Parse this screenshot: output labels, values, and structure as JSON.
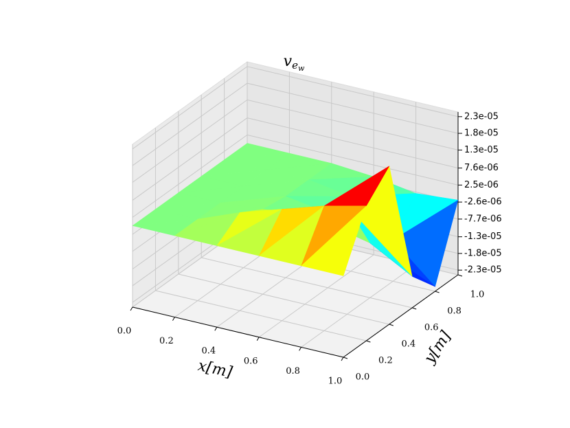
{
  "chart_data": {
    "type": "surface3d",
    "title": "v",
    "title_subscript": "e",
    "title_subsubscript": "w",
    "xlabel": "x[m]",
    "ylabel": "y[m]",
    "colormap": "jet",
    "grid": true,
    "x": [
      0,
      0.2,
      0.4,
      0.6,
      0.8,
      1
    ],
    "y": [
      0,
      0.2,
      0.4,
      0.6,
      0.8,
      1
    ],
    "z": [
      [
        0,
        0,
        0,
        0,
        0,
        0
      ],
      [
        0,
        0,
        5e-06,
        9e-06,
        1.3e-05,
        1.6e-05
      ],
      [
        0,
        0,
        1e-06,
        3e-06,
        8e-06,
        2.3e-05
      ],
      [
        0,
        0,
        0,
        -2e-06,
        -8e-06,
        -1.5e-05
      ],
      [
        0,
        0,
        0,
        -2e-06,
        -1.2e-05,
        -2.3e-05
      ],
      [
        0,
        0,
        0,
        -1e-06,
        -3e-06,
        -2e-06
      ]
    ],
    "xlim": [
      0,
      1
    ],
    "ylim": [
      0,
      1
    ],
    "zlim": [
      -2.44e-05,
      2.44e-05
    ],
    "xticks": [
      {
        "value": 0,
        "label": "0.0"
      },
      0.2,
      0.4,
      0.6,
      0.8,
      {
        "value": 1,
        "label": "1.0"
      }
    ],
    "yticks": [
      {
        "value": 0,
        "label": "0.0"
      },
      0.2,
      0.4,
      0.6,
      0.8,
      {
        "value": 1,
        "label": "1.0"
      }
    ],
    "zticks": [
      {
        "value": 2.3e-05,
        "label": "2.3e-05"
      },
      {
        "value": 1.8e-05,
        "label": "1.8e-05"
      },
      {
        "value": 1.3e-05,
        "label": "1.3e-05"
      },
      {
        "value": 7.6e-06,
        "label": "7.6e-06"
      },
      {
        "value": 2.5e-06,
        "label": "2.5e-06"
      },
      {
        "value": -2.6e-06,
        "label": "-2.6e-06"
      },
      {
        "value": -7.7e-06,
        "label": "-7.7e-06"
      },
      {
        "value": -1.3e-05,
        "label": "-1.3e-05"
      },
      {
        "value": -1.8e-05,
        "label": "-1.8e-05"
      },
      {
        "value": -2.3e-05,
        "label": "-2.3e-05"
      }
    ]
  }
}
